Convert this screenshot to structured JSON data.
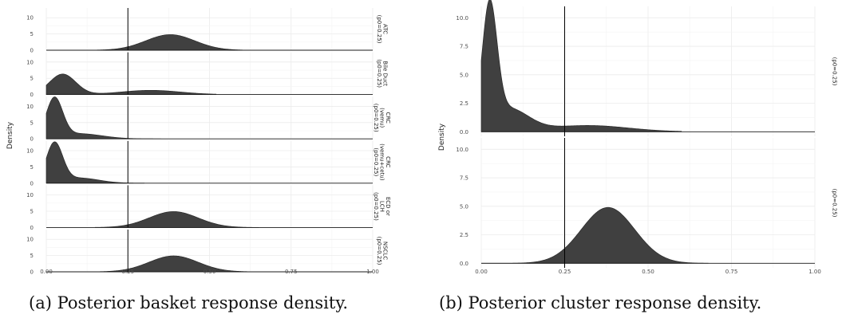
{
  "captions": {
    "a": "(a) Posterior basket response density.",
    "b": "(b) Posterior cluster response density."
  },
  "chart_data": [
    {
      "type": "area",
      "ylabel": "Density",
      "xlim": [
        0,
        1
      ],
      "x_ticks": [
        "0.00",
        "0.25",
        "0.50",
        "0.75",
        "1.00"
      ],
      "reference_line_x": 0.25,
      "grid": true,
      "panels": [
        {
          "strip": [
            "ATC",
            "(p0=0.25)"
          ],
          "ylim": [
            0,
            13
          ],
          "y_ticks": [
            0,
            5,
            10
          ],
          "components": [
            {
              "mean": 0.38,
              "sd": 0.075,
              "peak": 4.8
            }
          ],
          "support": [
            0.03,
            0.6
          ]
        },
        {
          "strip": [
            "Bile Duct",
            "(p0=0.25)"
          ],
          "ylim": [
            0,
            13
          ],
          "y_ticks": [
            0,
            5,
            10
          ],
          "components": [
            {
              "mean": 0.05,
              "sd": 0.04,
              "peak": 6.3
            },
            {
              "mean": 0.32,
              "sd": 0.09,
              "peak": 1.3
            }
          ],
          "support": [
            0.0,
            0.52
          ]
        },
        {
          "strip": [
            "CRC",
            "(vemu)",
            "(p0=0.25)"
          ],
          "ylim": [
            0,
            13
          ],
          "y_ticks": [
            0,
            5,
            10
          ],
          "components": [
            {
              "mean": 0.025,
              "sd": 0.025,
              "peak": 12.0
            },
            {
              "mean": 0.1,
              "sd": 0.07,
              "peak": 1.6
            }
          ],
          "support": [
            0.0,
            0.35
          ]
        },
        {
          "strip": [
            "CRC",
            "(vemu+cetu)",
            "(p0=0.25)"
          ],
          "ylim": [
            0,
            13
          ],
          "y_ticks": [
            0,
            5,
            10
          ],
          "components": [
            {
              "mean": 0.025,
              "sd": 0.025,
              "peak": 12.0
            },
            {
              "mean": 0.1,
              "sd": 0.06,
              "peak": 1.6
            }
          ],
          "support": [
            0.0,
            0.3
          ]
        },
        {
          "strip": [
            "ECD or",
            "LCH",
            "(p0=0.25)"
          ],
          "ylim": [
            0,
            13
          ],
          "y_ticks": [
            0,
            5,
            10
          ],
          "components": [
            {
              "mean": 0.39,
              "sd": 0.075,
              "peak": 4.9
            }
          ],
          "support": [
            0.15,
            0.65
          ]
        },
        {
          "strip": [
            "NSCLC",
            "(p0=0.25)"
          ],
          "ylim": [
            0,
            13
          ],
          "y_ticks": [
            0,
            5,
            10
          ],
          "components": [
            {
              "mean": 0.39,
              "sd": 0.075,
              "peak": 4.9
            }
          ],
          "support": [
            0.15,
            0.65
          ]
        }
      ]
    },
    {
      "type": "area",
      "ylabel": "Density",
      "xlim": [
        0,
        1
      ],
      "x_ticks": [
        "0.00",
        "0.25",
        "0.50",
        "0.75",
        "1.00"
      ],
      "reference_line_x": 0.25,
      "grid": true,
      "panels": [
        {
          "strip": [
            "(p0=0.25)"
          ],
          "ylim": [
            -0.4,
            11.0
          ],
          "y_ticks": [
            "0.0",
            "2.5",
            "5.0",
            "7.5",
            "10.0"
          ],
          "components": [
            {
              "mean": 0.025,
              "sd": 0.022,
              "peak": 10.3
            },
            {
              "mean": 0.08,
              "sd": 0.06,
              "peak": 2.0
            },
            {
              "mean": 0.32,
              "sd": 0.12,
              "peak": 0.55
            }
          ],
          "support": [
            0.0,
            0.6
          ]
        },
        {
          "strip": [
            "(p0=0.25)"
          ],
          "ylim": [
            -0.4,
            11.0
          ],
          "y_ticks": [
            "0.0",
            "2.5",
            "5.0",
            "7.5",
            "10.0"
          ],
          "components": [
            {
              "mean": 0.38,
              "sd": 0.08,
              "peak": 4.9
            }
          ],
          "support": [
            0.0,
            0.68
          ]
        }
      ]
    }
  ]
}
